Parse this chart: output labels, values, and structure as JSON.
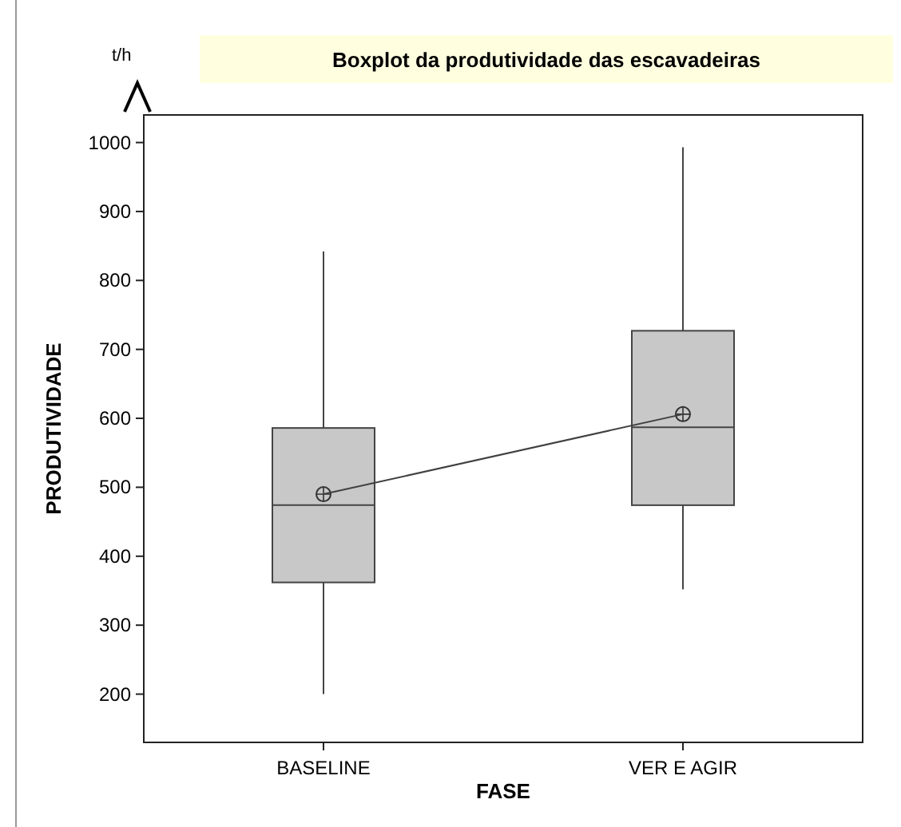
{
  "chart_data": {
    "type": "box",
    "title": "Boxplot da produtividade das escavadeiras",
    "xlabel": "FASE",
    "ylabel": "PRODUTIVIDADE",
    "annotations": [
      "t/h"
    ],
    "categories": [
      "BASELINE",
      "VER E AGIR"
    ],
    "color": "#c8c8c8",
    "boxes": [
      {
        "low": 200,
        "q1": 362,
        "median": 474,
        "q3": 586,
        "high": 842,
        "mean": 490
      },
      {
        "low": 352,
        "q1": 474,
        "median": 587,
        "q3": 727,
        "high": 993,
        "mean": 606
      }
    ],
    "series": [
      {
        "type": "line",
        "color": "#404040",
        "values": [
          490,
          606
        ],
        "marker": "none"
      }
    ],
    "ylim": [
      130,
      1040
    ],
    "yticks": [
      200,
      300,
      400,
      500,
      600,
      700,
      800,
      900,
      1000
    ],
    "grid": false
  }
}
